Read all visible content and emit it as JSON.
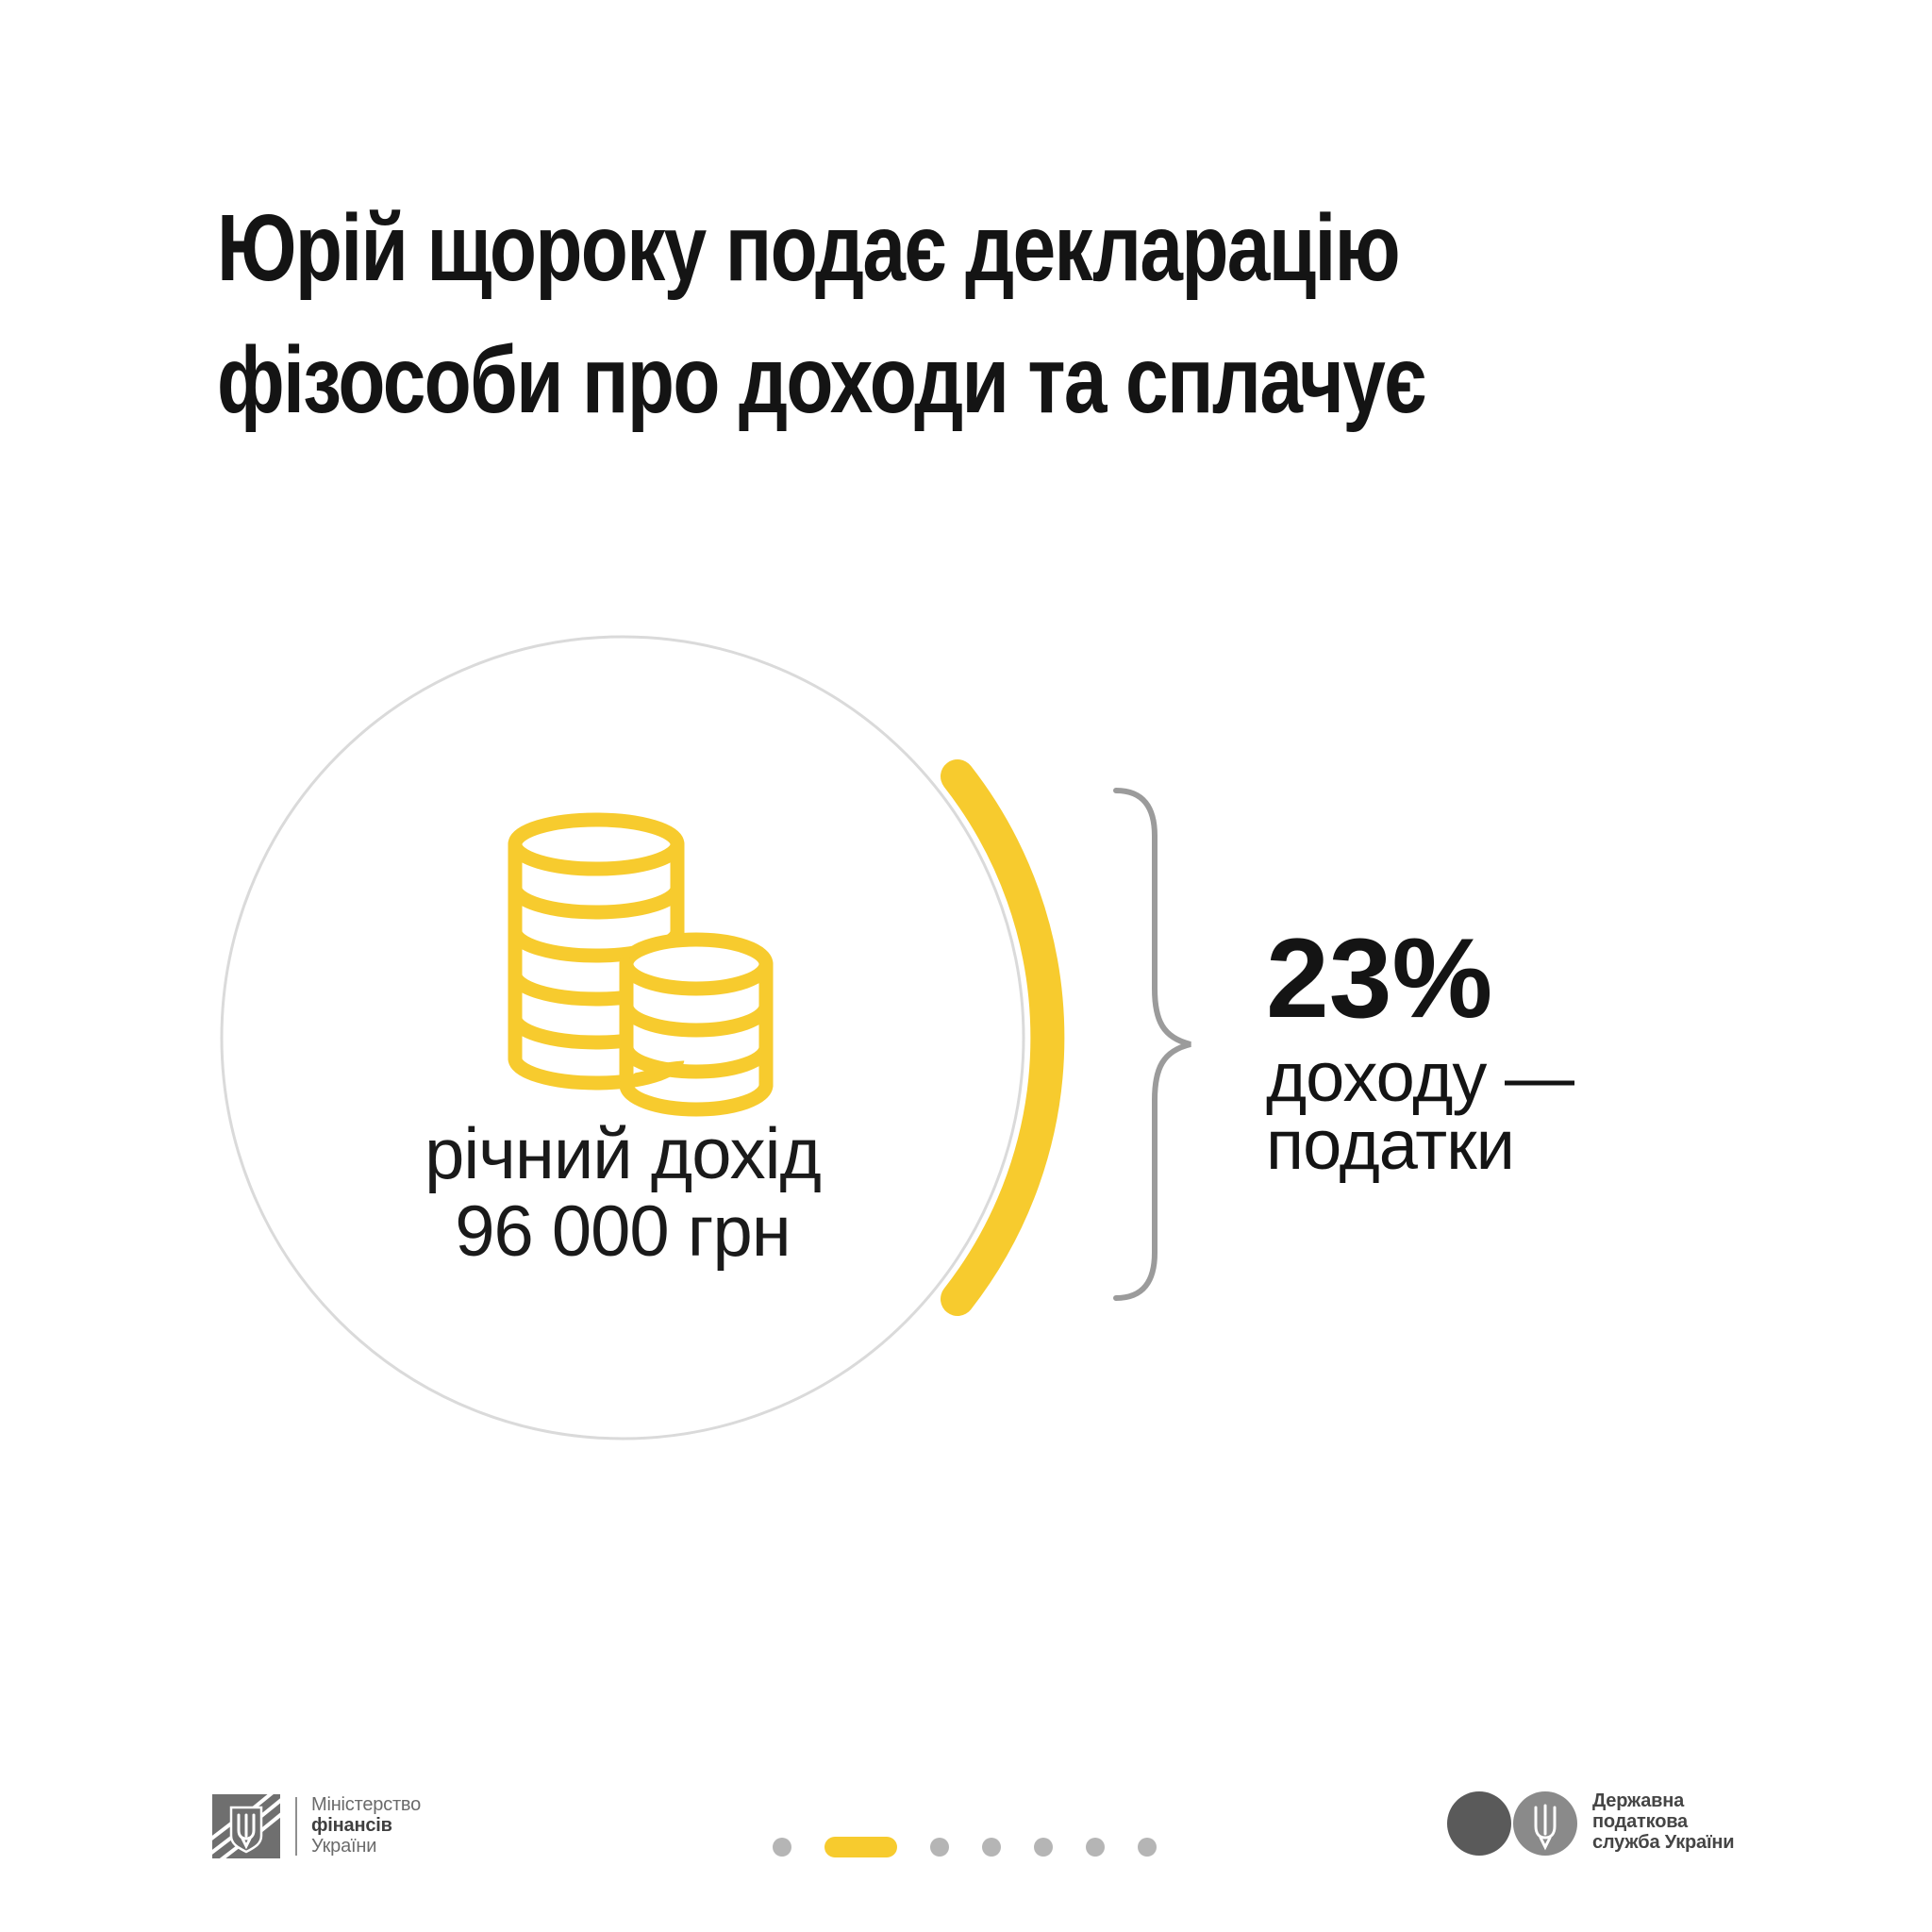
{
  "title": "Юрій щороку подає декларацію\nфізособи про доходи та сплачує",
  "income_circle": {
    "icon": "coins-icon",
    "label_line1": "річний дохід",
    "label_line2": "96 000 грн"
  },
  "tax_callout": {
    "percent": "23%",
    "line1": "доходу —",
    "line2": "податки"
  },
  "footer": {
    "minfin": {
      "emblem_icon": "minfin-trident-emblem",
      "line1": "Міністерство",
      "line2": "фінансів",
      "line3": "України"
    },
    "tax_service": {
      "logo_icon": "tax-service-trident-logo",
      "line1": "Державна",
      "line2": "податкова",
      "line3": "служба України"
    },
    "pagination": {
      "count": 7,
      "active_index": 1
    }
  },
  "colors": {
    "accent_yellow": "#F7CB2E",
    "title_text": "#141414",
    "circle_outline": "#DADADA",
    "brace_gray": "#9B9B9B",
    "dot_gray": "#B5B5B5",
    "minfin_emblem_gray": "#6F6F6F",
    "tax_logo_dark_circle": "#5A5A5A",
    "tax_logo_light_circle": "#8A8A8A",
    "footer_text_gray": "#6B6B6B"
  }
}
